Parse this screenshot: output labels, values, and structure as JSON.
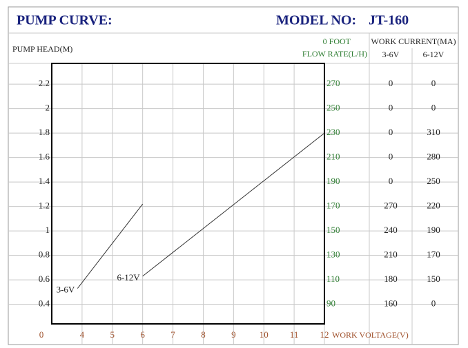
{
  "header": {
    "title": "PUMP CURVE:",
    "model_label": "MODEL NO:",
    "model": "JT-160"
  },
  "chart_data": {
    "type": "line",
    "y_label": "PUMP HEAD(M)",
    "y2_label_top": "0 FOOT",
    "y2_label": "FLOW RATE(L/H)",
    "x_label": "WORK VOLTAGE(V)",
    "x_origin_label": "0",
    "xlim": [
      3,
      12
    ],
    "xticks": [
      4,
      5,
      6,
      7,
      8,
      9,
      10,
      11,
      12
    ],
    "ylim": [
      0.24,
      2.37
    ],
    "yticks": [
      0.4,
      0.6,
      0.8,
      1,
      1.2,
      1.4,
      1.6,
      1.8,
      2,
      2.2
    ],
    "y2lim": [
      74,
      287
    ],
    "y2ticks": [
      90,
      110,
      130,
      150,
      170,
      190,
      210,
      230,
      250,
      270
    ],
    "grid": true,
    "y2_color": "#2e7d32",
    "series": [
      {
        "name": "3-6V",
        "color": "#333333",
        "x": [
          3.85,
          6
        ],
        "values": [
          0.53,
          1.22
        ]
      },
      {
        "name": "6-12V",
        "color": "#333333",
        "x": [
          6,
          12
        ],
        "values": [
          0.63,
          1.8
        ]
      }
    ]
  },
  "table": {
    "title": "WORK CURRENT(MA)",
    "columns": [
      "3-6V",
      "6-12V"
    ],
    "rows": [
      [
        0,
        0
      ],
      [
        0,
        0
      ],
      [
        0,
        310
      ],
      [
        0,
        280
      ],
      [
        0,
        250
      ],
      [
        270,
        220
      ],
      [
        240,
        190
      ],
      [
        210,
        170
      ],
      [
        180,
        150
      ],
      [
        160,
        0
      ]
    ]
  }
}
